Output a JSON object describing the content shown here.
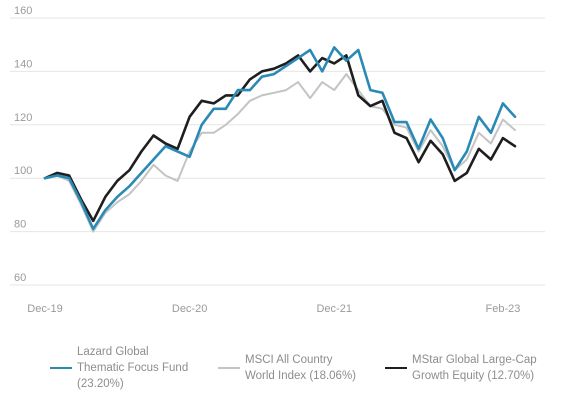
{
  "chart_data": {
    "type": "line",
    "x_labels": [
      "Dec-19",
      "Dec-20",
      "Dec-21",
      "Feb-23"
    ],
    "x_label_index": [
      0,
      12,
      24,
      38
    ],
    "ylim": [
      60,
      160
    ],
    "yticks": [
      60,
      80,
      100,
      120,
      140,
      160
    ],
    "grid": "horizontal",
    "legend_placement": "bottom",
    "series": [
      {
        "name": "Lazard Global\nThematic Focus Fund\n(23.20%)",
        "color": "#2a8ab5",
        "values": [
          100,
          101,
          100,
          91,
          81,
          88,
          93,
          97,
          102,
          107,
          112,
          110,
          108,
          120,
          126,
          126,
          133,
          133,
          138,
          139,
          142,
          145,
          148,
          140,
          149,
          144,
          148,
          133,
          132,
          121,
          121,
          111,
          122,
          115,
          103,
          110,
          123,
          117,
          128,
          123
        ]
      },
      {
        "name": "MSCI All Country\nWorld Index (18.06%)",
        "color": "#c4c4c4",
        "values": [
          100,
          101,
          99,
          90,
          80,
          87,
          91,
          94,
          99,
          105,
          101,
          99,
          110,
          117,
          117,
          120,
          124,
          129,
          131,
          132,
          133,
          136,
          130,
          136,
          133,
          139,
          133,
          127,
          126,
          120,
          119,
          110,
          118,
          112,
          103,
          107,
          117,
          113,
          122,
          118
        ]
      },
      {
        "name": "MStar Global Large-Cap\nGrowth Equity (12.70%)",
        "color": "#1e1e1e",
        "values": [
          100,
          102,
          101,
          92,
          84,
          93,
          99,
          103,
          110,
          116,
          113,
          111,
          123,
          129,
          128,
          131,
          131,
          137,
          140,
          141,
          143,
          146,
          140,
          145,
          143,
          146,
          131,
          127,
          129,
          117,
          115,
          106,
          114,
          109,
          99,
          102,
          111,
          107,
          115,
          112
        ]
      }
    ]
  }
}
